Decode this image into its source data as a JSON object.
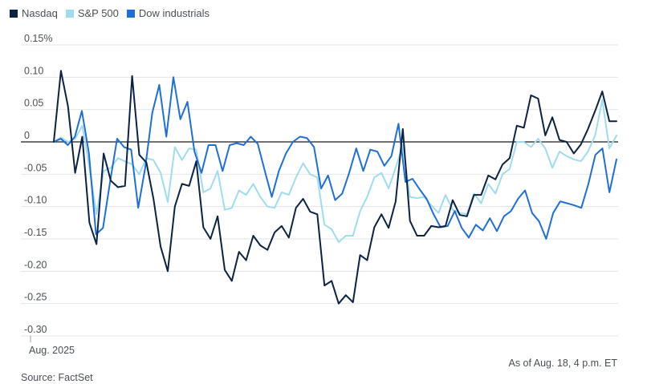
{
  "chart_data": {
    "type": "line",
    "title": "",
    "xlabel": "",
    "ylabel": "",
    "ylim": [
      -0.3,
      0.15
    ],
    "yticks": [
      0.15,
      0.1,
      0.05,
      0,
      -0.05,
      -0.1,
      -0.15,
      -0.2,
      -0.25,
      -0.3
    ],
    "ytick_labels": [
      "0.15%",
      "0.10",
      "0.05",
      "0",
      "-0.05",
      "-0.10",
      "-0.15",
      "-0.20",
      "-0.25",
      "-0.30"
    ],
    "x_start_label": "Aug. 2025",
    "grid": true,
    "legend_position": "top-left",
    "note": "As of Aug. 18, 4 p.m. ET",
    "source": "Source: FactSet",
    "series": [
      {
        "name": "Nasdaq",
        "color": "#0a2344",
        "values": [
          0.0,
          0.11,
          0.055,
          -0.048,
          0.008,
          -0.125,
          -0.158,
          -0.018,
          -0.06,
          -0.07,
          -0.068,
          0.102,
          -0.02,
          -0.032,
          -0.088,
          -0.162,
          -0.2,
          -0.1,
          -0.065,
          -0.068,
          -0.03,
          -0.132,
          -0.15,
          -0.115,
          -0.198,
          -0.215,
          -0.17,
          -0.183,
          -0.145,
          -0.16,
          -0.167,
          -0.14,
          -0.13,
          -0.148,
          -0.102,
          -0.088,
          -0.108,
          -0.112,
          -0.222,
          -0.215,
          -0.25,
          -0.237,
          -0.248,
          -0.175,
          -0.183,
          -0.132,
          -0.112,
          -0.133,
          -0.092,
          0.02,
          -0.122,
          -0.145,
          -0.145,
          -0.13,
          -0.132,
          -0.13,
          -0.09,
          -0.113,
          -0.115,
          -0.082,
          -0.082,
          -0.052,
          -0.058,
          -0.035,
          -0.025,
          0.025,
          0.022,
          0.072,
          0.067,
          0.01,
          0.038,
          0.003,
          0.0,
          -0.018,
          -0.004,
          0.02,
          0.048,
          0.078,
          0.032,
          0.032
        ]
      },
      {
        "name": "S&P 500",
        "color": "#9fdcf0",
        "values": [
          0.0,
          0.007,
          0.0,
          0.005,
          0.025,
          -0.04,
          -0.112,
          -0.045,
          -0.04,
          -0.025,
          -0.03,
          -0.035,
          -0.05,
          -0.025,
          -0.028,
          -0.048,
          -0.093,
          -0.008,
          -0.028,
          -0.01,
          -0.012,
          -0.078,
          -0.072,
          -0.045,
          -0.105,
          -0.102,
          -0.075,
          -0.082,
          -0.065,
          -0.085,
          -0.1,
          -0.102,
          -0.078,
          -0.082,
          -0.055,
          -0.033,
          -0.05,
          -0.055,
          -0.128,
          -0.135,
          -0.155,
          -0.145,
          -0.145,
          -0.107,
          -0.085,
          -0.055,
          -0.048,
          -0.072,
          -0.04,
          -0.005,
          -0.085,
          -0.087,
          -0.085,
          -0.098,
          -0.11,
          -0.082,
          -0.105,
          -0.11,
          -0.112,
          -0.08,
          -0.095,
          -0.065,
          -0.08,
          -0.05,
          -0.042,
          0.0,
          0.0,
          -0.008,
          0.005,
          -0.01,
          -0.04,
          -0.015,
          -0.022,
          -0.027,
          -0.03,
          -0.015,
          0.01,
          0.065,
          -0.01,
          0.01
        ]
      },
      {
        "name": "Dow industrials",
        "color": "#1e6fd6",
        "values": [
          0.0,
          0.005,
          -0.005,
          0.008,
          0.048,
          -0.018,
          -0.143,
          -0.133,
          -0.062,
          0.005,
          -0.008,
          -0.012,
          -0.102,
          -0.04,
          0.045,
          0.088,
          0.008,
          0.1,
          0.035,
          0.062,
          -0.015,
          -0.048,
          -0.005,
          -0.005,
          -0.045,
          -0.005,
          -0.002,
          -0.005,
          0.008,
          -0.003,
          -0.045,
          -0.085,
          -0.045,
          -0.018,
          0.0,
          0.008,
          0.006,
          -0.008,
          -0.072,
          -0.052,
          -0.09,
          -0.08,
          -0.048,
          -0.01,
          -0.045,
          -0.012,
          -0.015,
          -0.037,
          -0.022,
          0.028,
          -0.062,
          -0.057,
          -0.073,
          -0.088,
          -0.112,
          -0.132,
          -0.13,
          -0.107,
          -0.133,
          -0.148,
          -0.128,
          -0.137,
          -0.118,
          -0.138,
          -0.115,
          -0.107,
          -0.088,
          -0.075,
          -0.11,
          -0.123,
          -0.15,
          -0.11,
          -0.092,
          -0.095,
          -0.098,
          -0.102,
          -0.065,
          -0.02,
          -0.01,
          -0.078,
          -0.027
        ]
      }
    ]
  }
}
